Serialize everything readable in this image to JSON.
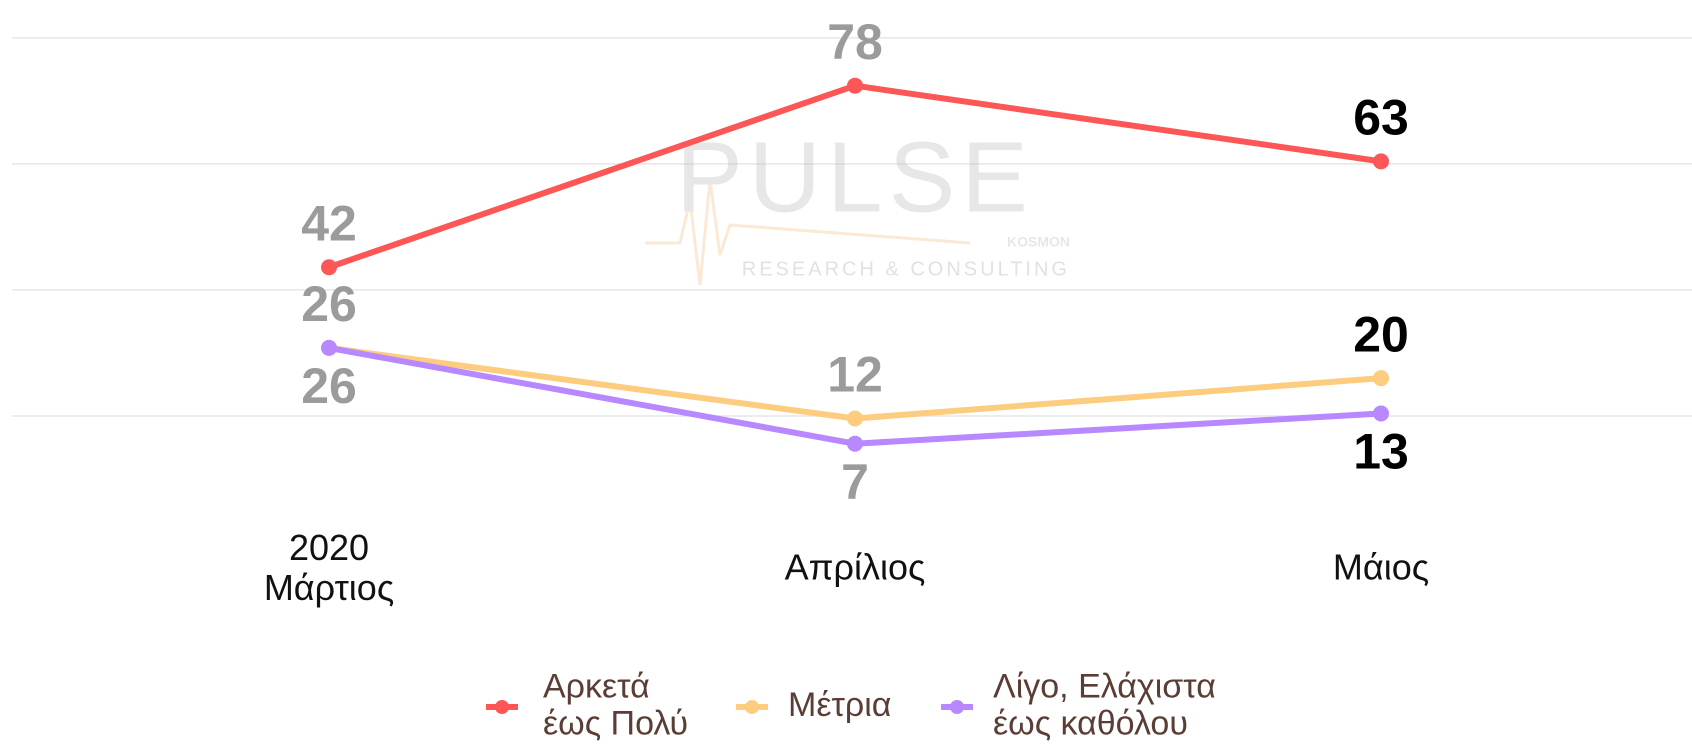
{
  "chart_data": {
    "type": "line",
    "categories": [
      "2020\nΜάρτιος",
      "Απρίλιος",
      "Μάιος"
    ],
    "series": [
      {
        "name": "Αρκετά\nέως Πολύ",
        "color": "#fc5656",
        "values": [
          42,
          78,
          63
        ]
      },
      {
        "name": "Μέτρια",
        "color": "#fdcc7e",
        "values": [
          26,
          12,
          20
        ]
      },
      {
        "name": "Λίγο, Ελάχιστα\nέως καθόλου",
        "color": "#b788ff",
        "values": [
          26,
          7,
          13
        ]
      }
    ],
    "ylim": [
      0,
      95
    ],
    "yticks": [
      12.5,
      37.5,
      62.5,
      87.5
    ],
    "grid": true,
    "legend": "bottom",
    "watermark": [
      "PULSE",
      "KOSMON",
      "RESEARCH & CONSULTING"
    ]
  }
}
